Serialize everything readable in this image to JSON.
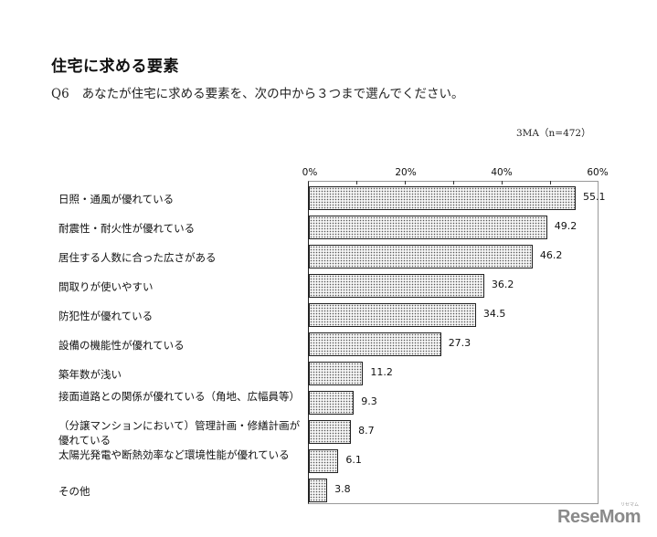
{
  "header": {
    "title": "住宅に求める要素",
    "question_no": "Q6",
    "question_text": "あなたが住宅に求める要素を、次の中から３つまで選んでください。",
    "sample_note": "3MA（n=472）"
  },
  "chart_data": {
    "type": "bar",
    "orientation": "horizontal",
    "title": "住宅に求める要素",
    "xlabel": "",
    "ylabel": "",
    "xlim": [
      0,
      60
    ],
    "x_ticks": [
      "0%",
      "20%",
      "40%",
      "60%"
    ],
    "grid": false,
    "legend": null,
    "unit": "%",
    "categories": [
      "日照・通風が優れている",
      "耐震性・耐火性が優れている",
      "居住する人数に合った広さがある",
      "間取りが使いやすい",
      "防犯性が優れている",
      "設備の機能性が優れている",
      "築年数が浅い",
      "接面道路との関係が優れている（角地、広幅員等）",
      "（分譲マンションにおいて）管理計画・修繕計画が優れている",
      "太陽光発電や断熱効率など環境性能が優れている",
      "その他"
    ],
    "values": [
      55.1,
      49.2,
      46.2,
      36.2,
      34.5,
      27.3,
      11.2,
      9.3,
      8.7,
      6.1,
      3.8
    ],
    "value_labels": [
      "55.1",
      "49.2",
      "46.2",
      "36.2",
      "34.5",
      "27.3",
      "11.2",
      "9.3",
      "8.7",
      "6.1",
      "3.8"
    ],
    "bar_pattern": "dotted",
    "bar_color": "#555555"
  },
  "labels": {
    "l0": "日照・通風が優れている",
    "l1": "耐震性・耐火性が優れている",
    "l2": "居住する人数に合った広さがある",
    "l3": "間取りが使いやすい",
    "l4": "防犯性が優れている",
    "l5": "設備の機能性が優れている",
    "l6": "築年数が浅い",
    "l7": "接面道路との関係が優れている（角地、広幅員等）",
    "l8": "（分譲マンションにおいて）管理計画・修繕計画が優れている",
    "l9": "太陽光発電や断熱効率など環境性能が優れている",
    "l10": "その他"
  },
  "ticks": {
    "t0": "0%",
    "t20": "20%",
    "t40": "40%",
    "t60": "60%"
  },
  "watermark": {
    "brand": "ReseMom",
    "kana": "リセマム"
  }
}
